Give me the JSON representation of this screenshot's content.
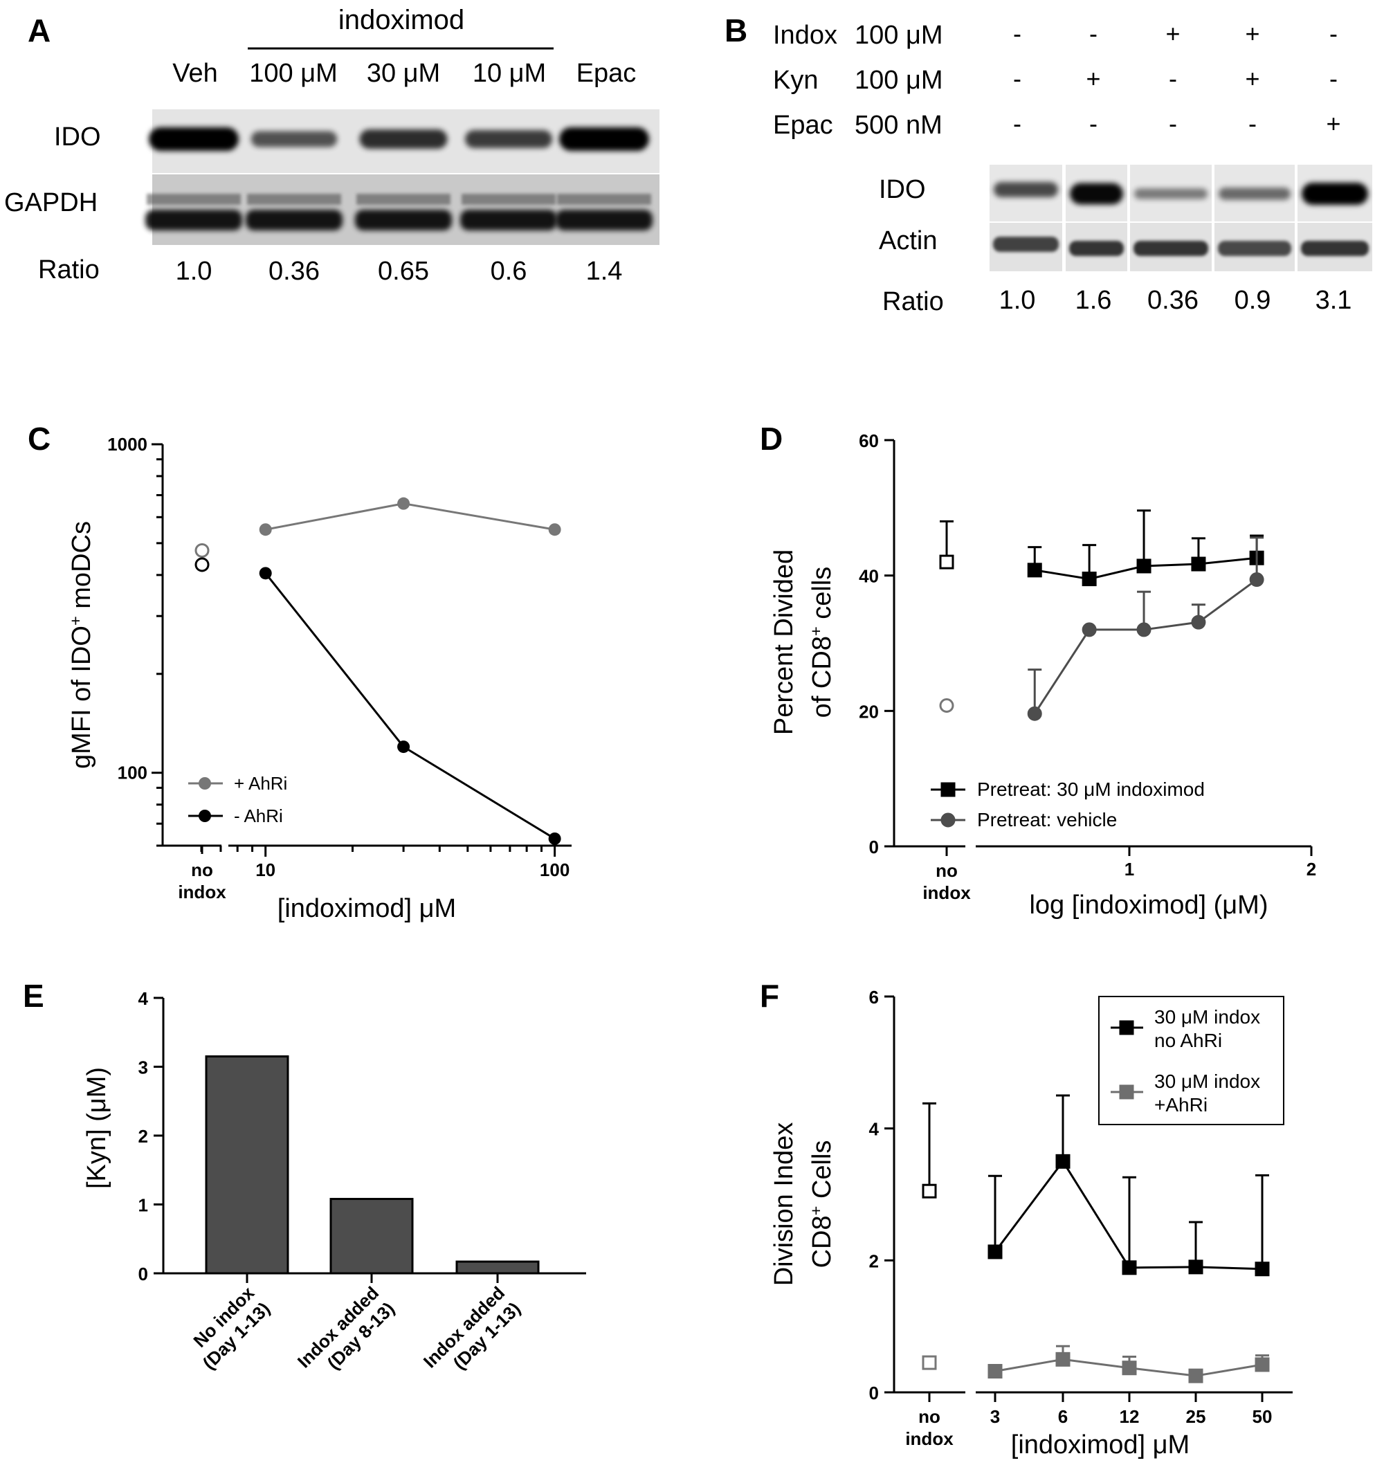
{
  "colors": {
    "black": "#000000",
    "gray": "#6e6e6e",
    "darkgray": "#4d4d4d",
    "openGray": "#7a7a7a",
    "blotBg": "#dcdcdc",
    "blotBand": "#111111"
  },
  "panelA": {
    "letter": "A",
    "group_label": "indoximod",
    "lanes": [
      "Veh",
      "100 μM",
      "30 μM",
      "10 μM",
      "Epac"
    ],
    "rows": [
      "IDO",
      "GAPDH"
    ],
    "ratio_label": "Ratio",
    "ratios": [
      "1.0",
      "0.36",
      "0.65",
      "0.6",
      "1.4"
    ],
    "ido_intensity": [
      1.0,
      0.45,
      0.7,
      0.6,
      1.0
    ],
    "gapdh_intensity": [
      0.9,
      0.9,
      0.9,
      0.9,
      0.9
    ]
  },
  "panelB": {
    "letter": "B",
    "treatments": [
      {
        "name": "Indox",
        "dose": "100 μM",
        "signs": [
          "-",
          "-",
          "+",
          "+",
          "-"
        ]
      },
      {
        "name": "Kyn",
        "dose": "100 μM",
        "signs": [
          "-",
          "+",
          "-",
          "+",
          "-"
        ]
      },
      {
        "name": "Epac",
        "dose": "500 nM",
        "signs": [
          "-",
          "-",
          "-",
          "-",
          "+"
        ]
      }
    ],
    "rows": [
      "IDO",
      "Actin"
    ],
    "ratio_label": "Ratio",
    "ratios": [
      "1.0",
      "1.6",
      "0.36",
      "0.9",
      "3.1"
    ],
    "ido_intensity": [
      0.55,
      0.95,
      0.25,
      0.35,
      1.0
    ],
    "actin_intensity": [
      0.6,
      0.7,
      0.7,
      0.55,
      0.7
    ]
  },
  "chart_data": [
    {
      "panel": "C",
      "type": "line",
      "ylabel_main": "gMFI of IDO",
      "ylabel_sup": "+",
      "ylabel_tail": " moDCs",
      "xlabel": "[indoximod] μM",
      "y_scale": "log",
      "ylim": [
        60,
        1000
      ],
      "x_scale": "log",
      "xlim": [
        5.2,
        115
      ],
      "y_ticks": [
        "100",
        "1000"
      ],
      "x_ticks": [
        "10",
        "100"
      ],
      "category_label_line1": "no",
      "category_label_line2": "indox",
      "legend_position": "bottom-left",
      "series": [
        {
          "name": "+ AhRi",
          "color": "#777777",
          "x": [
            10,
            30,
            100
          ],
          "y": [
            550,
            660,
            550
          ],
          "no_indox": 475
        },
        {
          "name": "-  AhRi",
          "color": "#000000",
          "x": [
            10,
            30,
            100
          ],
          "y": [
            405,
            120,
            63
          ],
          "no_indox": 430
        }
      ]
    },
    {
      "panel": "D",
      "type": "line",
      "ylabel_line1": "Percent Divided",
      "ylabel_line2_main": "of CD8",
      "ylabel_line2_sup": "+",
      "ylabel_line2_tail": " cells",
      "xlabel": "log [indoximod] (μM)",
      "ylim": [
        0,
        60
      ],
      "xlim": [
        0,
        2
      ],
      "y_ticks": [
        "0",
        "20",
        "40",
        "60"
      ],
      "x_ticks": [
        "1",
        "2"
      ],
      "category_label_line1": "no",
      "category_label_line2": "indox",
      "legend_position": "bottom-center",
      "series": [
        {
          "name": "Pretreat: 30 μM indoximod",
          "color": "#000000",
          "marker": "square",
          "x": [
            0.48,
            0.78,
            1.08,
            1.38,
            1.7
          ],
          "y": [
            40.8,
            39.5,
            41.4,
            41.7,
            42.6
          ],
          "err": [
            3.4,
            5,
            8.2,
            3.8,
            3.3
          ],
          "no_indox": 42,
          "no_indox_err": 6
        },
        {
          "name": "Pretreat: vehicle",
          "color": "#4d4d4d",
          "marker": "circle",
          "x": [
            0.48,
            0.78,
            1.08,
            1.38,
            1.7
          ],
          "y": [
            19.6,
            32,
            32,
            33.1,
            39.4
          ],
          "err": [
            6.5,
            0,
            5.6,
            2.6,
            6.2
          ],
          "no_indox": 20.8,
          "no_indox_err": 0
        }
      ]
    },
    {
      "panel": "E",
      "type": "bar",
      "ylabel": "[Kyn] (μM)",
      "ylim": [
        0,
        4
      ],
      "y_ticks": [
        "0",
        "1",
        "2",
        "3",
        "4"
      ],
      "categories": [
        {
          "line1": "No indox",
          "line2": "(Day 1-13)"
        },
        {
          "line1": "Indox added",
          "line2": "(Day 8-13)"
        },
        {
          "line1": "Indox added",
          "line2": "(Day 1-13)"
        }
      ],
      "values": [
        3.15,
        1.08,
        0.17
      ],
      "color": "#4d4d4d"
    },
    {
      "panel": "F",
      "type": "line",
      "ylabel_line1": "Division Index",
      "ylabel_line2_main": "CD8",
      "ylabel_line2_sup": "+",
      "ylabel_line2_tail": " Cells",
      "xlabel": "[indoximod] μM",
      "ylim": [
        0,
        6
      ],
      "y_ticks": [
        "0",
        "2",
        "4",
        "6"
      ],
      "categories": [
        "3",
        "6",
        "12",
        "25",
        "50"
      ],
      "category_label_line1": "no",
      "category_label_line2": "indox",
      "legend_position": "top-right",
      "series": [
        {
          "name_line1": "30 μM indox",
          "name_line2": "no AhRi",
          "color": "#000000",
          "values": [
            2.13,
            3.5,
            1.89,
            1.9,
            1.87
          ],
          "err": [
            1.15,
            1.0,
            1.37,
            0.68,
            1.42
          ],
          "no_indox": 3.05,
          "no_indox_err": 1.33
        },
        {
          "name_line1": "30 μM indox",
          "name_line2": "+AhRi",
          "color": "#6e6e6e",
          "values": [
            0.32,
            0.5,
            0.37,
            0.25,
            0.42
          ],
          "err": [
            0,
            0.2,
            0.17,
            0,
            0.14
          ],
          "no_indox": 0.45,
          "no_indox_err": 0
        }
      ]
    }
  ]
}
